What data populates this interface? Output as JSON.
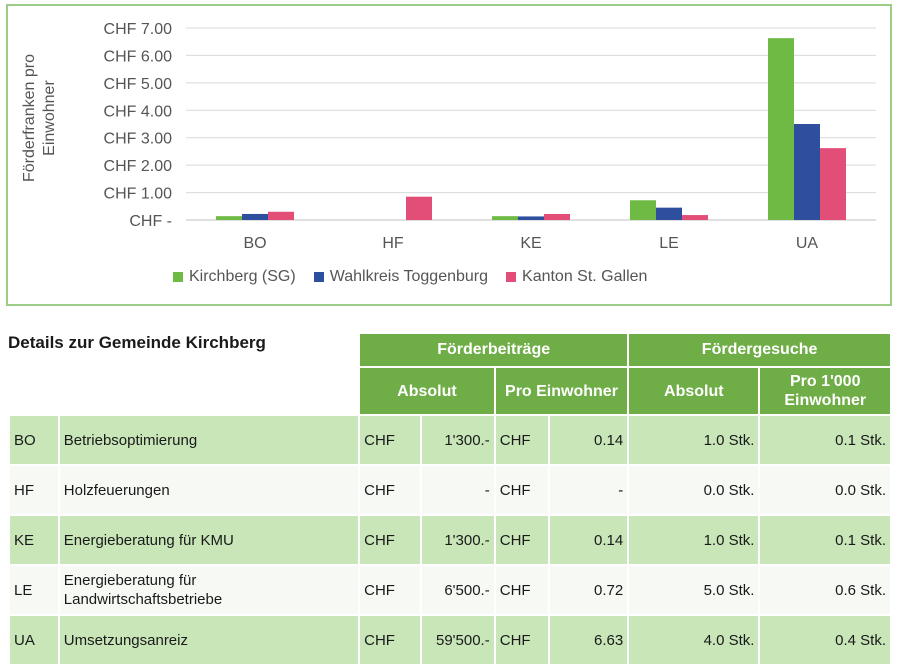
{
  "chart_data": {
    "type": "bar",
    "categories": [
      "BO",
      "HF",
      "KE",
      "LE",
      "UA"
    ],
    "series": [
      {
        "name": "Kirchberg (SG)",
        "color": "#6fba45",
        "values": [
          0.14,
          0.0,
          0.14,
          0.72,
          6.63
        ]
      },
      {
        "name": "Wahlkreis Toggenburg",
        "color": "#2e4f9e",
        "values": [
          0.22,
          0.0,
          0.13,
          0.45,
          3.5
        ]
      },
      {
        "name": "Kanton St. Gallen",
        "color": "#e34e78",
        "values": [
          0.3,
          0.85,
          0.22,
          0.18,
          2.62
        ]
      }
    ],
    "ylim": [
      0,
      7
    ],
    "yticks": [
      "CHF -",
      "CHF 1.00",
      "CHF 2.00",
      "CHF 3.00",
      "CHF 4.00",
      "CHF 5.00",
      "CHF 6.00",
      "CHF 7.00"
    ],
    "ylabel": "Förderfranken pro Einwohner",
    "xlabel": "",
    "title": "",
    "grid": true,
    "legend": "bottom"
  },
  "details": {
    "title": "Details zur Gemeinde Kirchberg",
    "group_beitraege": "Förderbeiträge",
    "group_gesuche": "Fördergesuche",
    "col_absolut": "Absolut",
    "col_pro_einwohner": "Pro Einwohner",
    "col_absolut2": "Absolut",
    "col_pro_1000": "Pro 1'000 Einwohner",
    "rows": [
      {
        "code": "BO",
        "name": "Betriebsoptimierung",
        "cur1": "CHF",
        "abs": "1'300.-",
        "cur2": "CHF",
        "pro": "0.14",
        "g_abs": "1.0 Stk.",
        "g_pro": "0.1 Stk."
      },
      {
        "code": "HF",
        "name": "Holzfeuerungen",
        "cur1": "CHF",
        "abs": "-",
        "cur2": "CHF",
        "pro": "-",
        "g_abs": "0.0 Stk.",
        "g_pro": "0.0 Stk."
      },
      {
        "code": "KE",
        "name": "Energieberatung für KMU",
        "cur1": "CHF",
        "abs": "1'300.-",
        "cur2": "CHF",
        "pro": "0.14",
        "g_abs": "1.0 Stk.",
        "g_pro": "0.1 Stk."
      },
      {
        "code": "LE",
        "name": "Energieberatung für Landwirtschaftsbetriebe",
        "cur1": "CHF",
        "abs": "6'500.-",
        "cur2": "CHF",
        "pro": "0.72",
        "g_abs": "5.0 Stk.",
        "g_pro": "0.6 Stk."
      },
      {
        "code": "UA",
        "name": "Umsetzungsanreiz",
        "cur1": "CHF",
        "abs": "59'500.-",
        "cur2": "CHF",
        "pro": "6.63",
        "g_abs": "4.0 Stk.",
        "g_pro": "0.4 Stk."
      }
    ]
  }
}
